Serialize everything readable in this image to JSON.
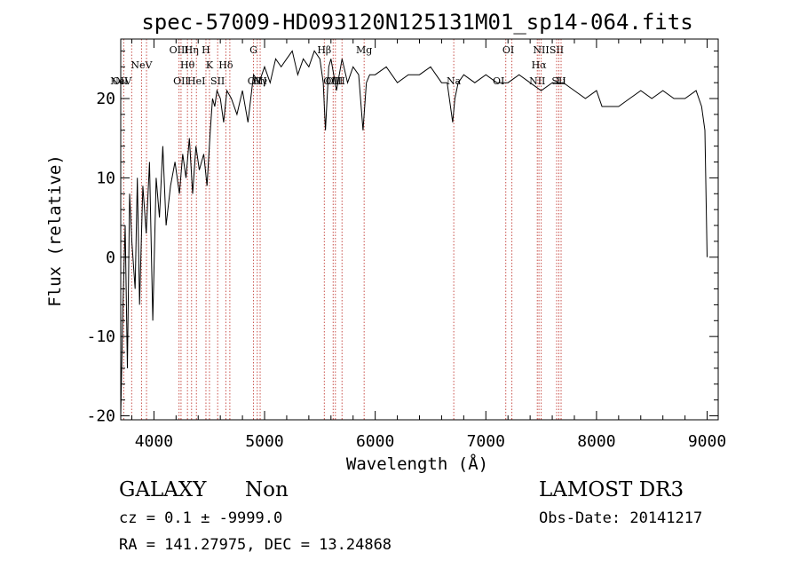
{
  "chart_data": {
    "type": "line",
    "title": "spec-57009-HD093120N125131M01_sp14-064.fits",
    "xlabel": "Wavelength (Å)",
    "ylabel": "Flux (relative)",
    "xlim": [
      3700,
      9100
    ],
    "ylim": [
      -20.5,
      27.5
    ],
    "xticks": [
      4000,
      5000,
      6000,
      7000,
      8000,
      9000
    ],
    "yticks": [
      -20,
      -10,
      0,
      10,
      20
    ],
    "grid": false,
    "series": [
      {
        "x": [
          3700,
          3720,
          3740,
          3760,
          3780,
          3800,
          3830,
          3850,
          3870,
          3900,
          3930,
          3960,
          3990,
          4020,
          4050,
          4080,
          4110,
          4150,
          4190,
          4230,
          4260,
          4290,
          4320,
          4350,
          4380,
          4410,
          4450,
          4480,
          4510,
          4530,
          4550,
          4570,
          4600,
          4630,
          4660,
          4700,
          4750,
          4800,
          4850,
          4900,
          4950,
          5000,
          5050,
          5100,
          5150,
          5200,
          5250,
          5300,
          5350,
          5400,
          5450,
          5500,
          5530,
          5550,
          5580,
          5600,
          5650,
          5700,
          5750,
          5800,
          5850,
          5890,
          5920,
          5950,
          6000,
          6100,
          6200,
          6300,
          6400,
          6500,
          6600,
          6650,
          6700,
          6720,
          6750,
          6800,
          6900,
          7000,
          7100,
          7200,
          7300,
          7400,
          7500,
          7600,
          7700,
          7800,
          7900,
          8000,
          8050,
          8100,
          8200,
          8300,
          8400,
          8500,
          8600,
          8700,
          8800,
          8900,
          8950,
          8980,
          9000
        ],
        "y": [
          -20,
          -6,
          4,
          -14,
          8,
          2,
          -4,
          10,
          -6,
          9,
          3,
          12,
          -8,
          10,
          5,
          14,
          4,
          9,
          12,
          8,
          13,
          10,
          15,
          8,
          14,
          11,
          13,
          9,
          16,
          20,
          19,
          21,
          20,
          17,
          21,
          20,
          18,
          21,
          17,
          23,
          22,
          24,
          22,
          25,
          24,
          25,
          26,
          23,
          25,
          24,
          26,
          25,
          22,
          16,
          24,
          25,
          21,
          25,
          22,
          24,
          23,
          16,
          22,
          23,
          23,
          24,
          22,
          23,
          23,
          24,
          22,
          22,
          17,
          20,
          22,
          23,
          22,
          23,
          22,
          22,
          23,
          22,
          21,
          22,
          22,
          21,
          20,
          21,
          19,
          19,
          19,
          20,
          21,
          20,
          21,
          20,
          20,
          21,
          19,
          16,
          0
        ]
      }
    ],
    "line_markers": [
      {
        "wavelength": 3727,
        "label": "OII",
        "row": 2,
        "dx": -4
      },
      {
        "wavelength": 3799,
        "label": "NeV",
        "row": 3,
        "dx": -12
      },
      {
        "wavelength": 3888,
        "label": "NeV",
        "row": 1,
        "dx": 0
      },
      {
        "wavelength": 3933,
        "label": "",
        "row": 0,
        "dx": 0
      },
      {
        "wavelength": 4227,
        "label": "OIII",
        "row": 0,
        "dx": 0
      },
      {
        "wavelength": 4245,
        "label": "OII",
        "row": 3,
        "dx": 0
      },
      {
        "wavelength": 4303,
        "label": "Hθ",
        "row": 1,
        "dx": 0
      },
      {
        "wavelength": 4340,
        "label": "Hη",
        "row": 0,
        "dx": 0
      },
      {
        "wavelength": 4384,
        "label": "HeI",
        "row": 3,
        "dx": 0
      },
      {
        "wavelength": 4470,
        "label": "H",
        "row": 0,
        "dx": 0
      },
      {
        "wavelength": 4502,
        "label": "K",
        "row": 1,
        "dx": 0
      },
      {
        "wavelength": 4576,
        "label": "SII",
        "row": 3,
        "dx": 0
      },
      {
        "wavelength": 4650,
        "label": "Hδ",
        "row": 1,
        "dx": 0
      },
      {
        "wavelength": 4686,
        "label": "",
        "row": 0,
        "dx": 0
      },
      {
        "wavelength": 4900,
        "label": "G",
        "row": 0,
        "dx": 0
      },
      {
        "wavelength": 4934,
        "label": "OIII",
        "row": 2,
        "dx": 0
      },
      {
        "wavelength": 4960,
        "label": "Hγ",
        "row": 3,
        "dx": 0
      },
      {
        "wavelength": 5540,
        "label": "Hβ",
        "row": 0,
        "dx": 0
      },
      {
        "wavelength": 5620,
        "label": "OIII",
        "row": 2,
        "dx": 0
      },
      {
        "wavelength": 5640,
        "label": "OIII",
        "row": 3,
        "dx": 0
      },
      {
        "wavelength": 5700,
        "label": "",
        "row": 0,
        "dx": 0
      },
      {
        "wavelength": 5900,
        "label": "Mg",
        "row": 0,
        "dx": 0
      },
      {
        "wavelength": 6710,
        "label": "Na",
        "row": 3,
        "dx": 0
      },
      {
        "wavelength": 7180,
        "label": "OI",
        "row": 2,
        "dx": -8
      },
      {
        "wavelength": 7235,
        "label": "OI",
        "row": 0,
        "dx": -4
      },
      {
        "wavelength": 7465,
        "label": "NII",
        "row": 3,
        "dx": 0
      },
      {
        "wavelength": 7480,
        "label": "Hα",
        "row": 1,
        "dx": 0
      },
      {
        "wavelength": 7500,
        "label": "NII",
        "row": 0,
        "dx": 0
      },
      {
        "wavelength": 7640,
        "label": "SII",
        "row": 0,
        "dx": 0
      },
      {
        "wavelength": 7660,
        "label": "SII",
        "row": 2,
        "dx": 0
      },
      {
        "wavelength": 7680,
        "label": "Li",
        "row": 3,
        "dx": 0
      }
    ]
  },
  "info": {
    "class_label": "GALAXY",
    "subclass_label": "Non",
    "survey_label": "LAMOST DR3",
    "cz_text": "cz = 0.1 ± -9999.0",
    "obs_date_text": "Obs-Date: 20141217",
    "coords_text": "RA = 141.27975, DEC =  13.24868"
  },
  "colors": {
    "marker_line": "#c8504a",
    "axes": "#000000"
  }
}
